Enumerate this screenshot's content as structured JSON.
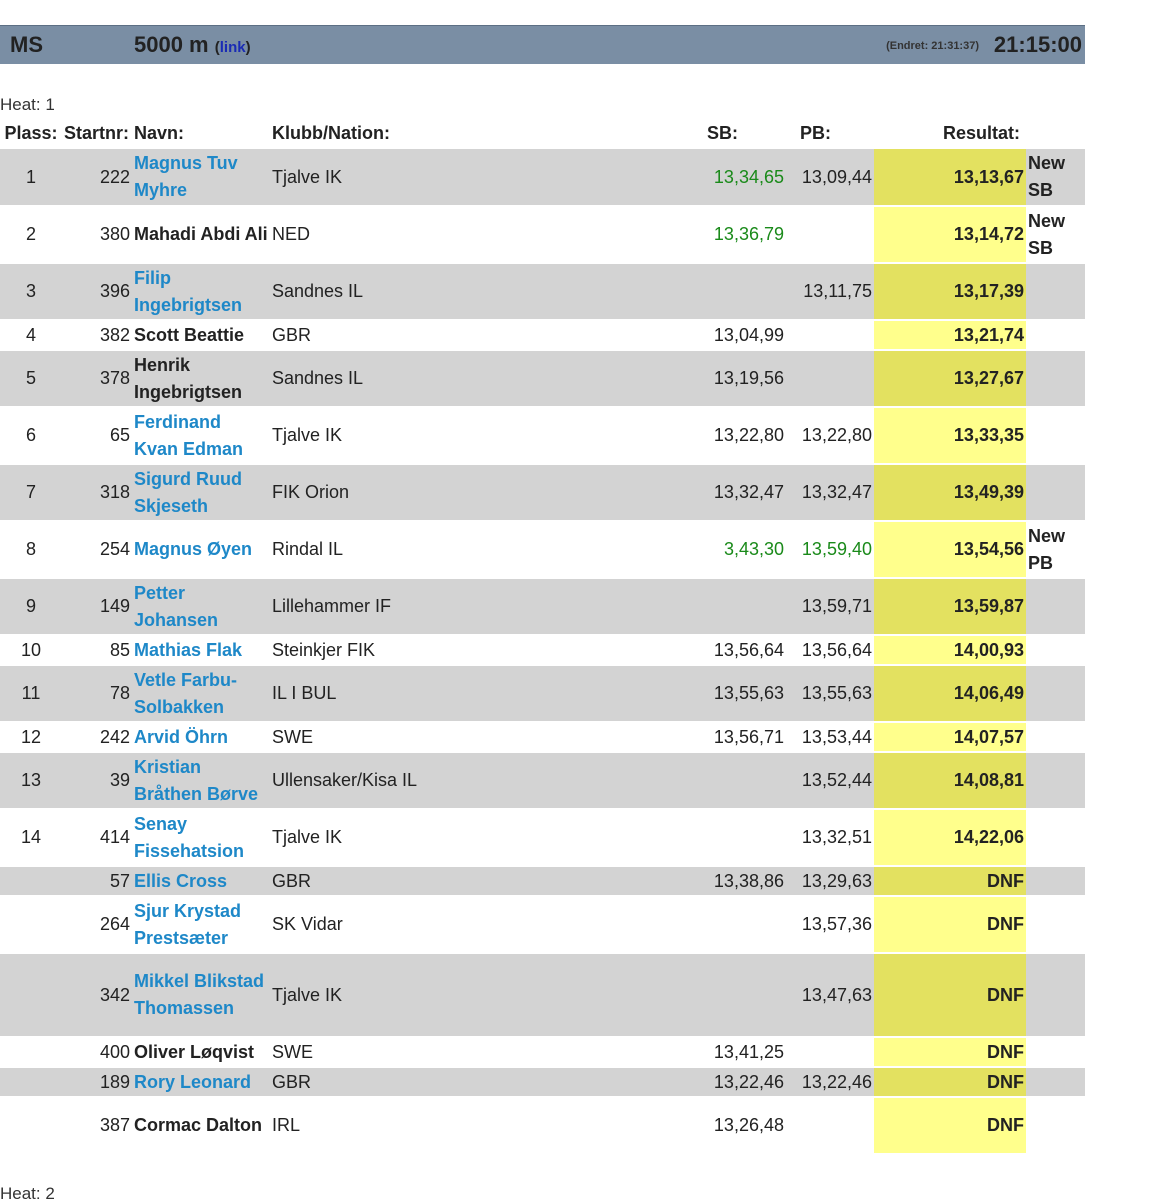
{
  "header": {
    "class": "MS",
    "event": "5000 m",
    "link_label": "link",
    "changed": "(Endret: 21:31:37)",
    "time": "21:15:00"
  },
  "heats": [
    {
      "label": "Heat: 1"
    },
    {
      "label": "Heat: 2"
    }
  ],
  "columns": {
    "plass": "Plass:",
    "startnr": "Startnr:",
    "navn": "Navn:",
    "klubb": "Klubb/Nation:",
    "sb": "SB:",
    "pb": "PB:",
    "resultat": "Resultat:"
  },
  "rows": [
    {
      "plass": "1",
      "startnr": "222",
      "name": "Magnus Tuv Myhre",
      "link": true,
      "club": "Tjalve IK",
      "sb": "13,34,65",
      "sb_green": true,
      "pb": "13,09,44",
      "pb_green": false,
      "result": "13,13,67",
      "note": "New SB",
      "lines": 2
    },
    {
      "plass": "2",
      "startnr": "380",
      "name": "Mahadi Abdi Ali",
      "link": false,
      "club": "NED",
      "sb": "13,36,79",
      "sb_green": true,
      "pb": "",
      "pb_green": false,
      "result": "13,14,72",
      "note": "New SB",
      "lines": 2
    },
    {
      "plass": "3",
      "startnr": "396",
      "name": "Filip Ingebrigtsen",
      "link": true,
      "club": "Sandnes IL",
      "sb": "",
      "sb_green": false,
      "pb": "13,11,75",
      "pb_green": false,
      "result": "13,17,39",
      "note": "",
      "lines": 2
    },
    {
      "plass": "4",
      "startnr": "382",
      "name": "Scott Beattie",
      "link": false,
      "club": "GBR",
      "sb": "13,04,99",
      "sb_green": false,
      "pb": "",
      "pb_green": false,
      "result": "13,21,74",
      "note": "",
      "lines": 1
    },
    {
      "plass": "5",
      "startnr": "378",
      "name": "Henrik Ingebrigtsen",
      "link": false,
      "club": "Sandnes IL",
      "sb": "13,19,56",
      "sb_green": false,
      "pb": "",
      "pb_green": false,
      "result": "13,27,67",
      "note": "",
      "lines": 2
    },
    {
      "plass": "6",
      "startnr": "65",
      "name": "Ferdinand Kvan Edman",
      "link": true,
      "club": "Tjalve IK",
      "sb": "13,22,80",
      "sb_green": false,
      "pb": "13,22,80",
      "pb_green": false,
      "result": "13,33,35",
      "note": "",
      "lines": 2
    },
    {
      "plass": "7",
      "startnr": "318",
      "name": "Sigurd Ruud Skjeseth",
      "link": true,
      "club": "FIK Orion",
      "sb": "13,32,47",
      "sb_green": false,
      "pb": "13,32,47",
      "pb_green": false,
      "result": "13,49,39",
      "note": "",
      "lines": 2
    },
    {
      "plass": "8",
      "startnr": "254",
      "name": "Magnus Øyen",
      "link": true,
      "club": "Rindal IL",
      "sb": "3,43,30",
      "sb_green": true,
      "pb": "13,59,40",
      "pb_green": true,
      "result": "13,54,56",
      "note": "New PB",
      "lines": 2
    },
    {
      "plass": "9",
      "startnr": "149",
      "name": "Petter Johansen",
      "link": true,
      "club": "Lillehammer IF",
      "sb": "",
      "sb_green": false,
      "pb": "13,59,71",
      "pb_green": false,
      "result": "13,59,87",
      "note": "",
      "lines": 2
    },
    {
      "plass": "10",
      "startnr": "85",
      "name": "Mathias Flak",
      "link": true,
      "club": "Steinkjer FIK",
      "sb": "13,56,64",
      "sb_green": false,
      "pb": "13,56,64",
      "pb_green": false,
      "result": "14,00,93",
      "note": "",
      "lines": 1
    },
    {
      "plass": "11",
      "startnr": "78",
      "name": "Vetle Farbu-Solbakken",
      "link": true,
      "club": "IL I BUL",
      "sb": "13,55,63",
      "sb_green": false,
      "pb": "13,55,63",
      "pb_green": false,
      "result": "14,06,49",
      "note": "",
      "lines": 2
    },
    {
      "plass": "12",
      "startnr": "242",
      "name": "Arvid Öhrn",
      "link": true,
      "club": "SWE",
      "sb": "13,56,71",
      "sb_green": false,
      "pb": "13,53,44",
      "pb_green": false,
      "result": "14,07,57",
      "note": "",
      "lines": 1
    },
    {
      "plass": "13",
      "startnr": "39",
      "name": "Kristian Bråthen Børve",
      "link": true,
      "club": "Ullensaker/Kisa IL",
      "sb": "",
      "sb_green": false,
      "pb": "13,52,44",
      "pb_green": false,
      "result": "14,08,81",
      "note": "",
      "lines": 2
    },
    {
      "plass": "14",
      "startnr": "414",
      "name": "Senay Fissehatsion",
      "link": true,
      "club": "Tjalve IK",
      "sb": "",
      "sb_green": false,
      "pb": "13,32,51",
      "pb_green": false,
      "result": "14,22,06",
      "note": "",
      "lines": 2
    },
    {
      "plass": "",
      "startnr": "57",
      "name": "Ellis Cross",
      "link": true,
      "club": "GBR",
      "sb": "13,38,86",
      "sb_green": false,
      "pb": "13,29,63",
      "pb_green": false,
      "result": "DNF",
      "note": "",
      "lines": 1
    },
    {
      "plass": "",
      "startnr": "264",
      "name": "Sjur Krystad Prestsæter",
      "link": true,
      "club": "SK Vidar",
      "sb": "",
      "sb_green": false,
      "pb": "13,57,36",
      "pb_green": false,
      "result": "DNF",
      "note": "",
      "lines": 2
    },
    {
      "plass": "",
      "startnr": "342",
      "name": "Mikkel Blikstad Thomassen",
      "link": true,
      "club": "Tjalve IK",
      "sb": "",
      "sb_green": false,
      "pb": "13,47,63",
      "pb_green": false,
      "result": "DNF",
      "note": "",
      "lines": 3
    },
    {
      "plass": "",
      "startnr": "400",
      "name": "Oliver Løqvist",
      "link": false,
      "club": "SWE",
      "sb": "13,41,25",
      "sb_green": false,
      "pb": "",
      "pb_green": false,
      "result": "DNF",
      "note": "",
      "lines": 1
    },
    {
      "plass": "",
      "startnr": "189",
      "name": "Rory Leonard",
      "link": true,
      "club": "GBR",
      "sb": "13,22,46",
      "sb_green": false,
      "pb": "13,22,46",
      "pb_green": false,
      "result": "DNF",
      "note": "",
      "lines": 1
    },
    {
      "plass": "",
      "startnr": "387",
      "name": "Cormac Dalton",
      "link": false,
      "club": "IRL",
      "sb": "13,26,48",
      "sb_green": false,
      "pb": "",
      "pb_green": false,
      "result": "DNF",
      "note": "",
      "lines": 2
    }
  ]
}
